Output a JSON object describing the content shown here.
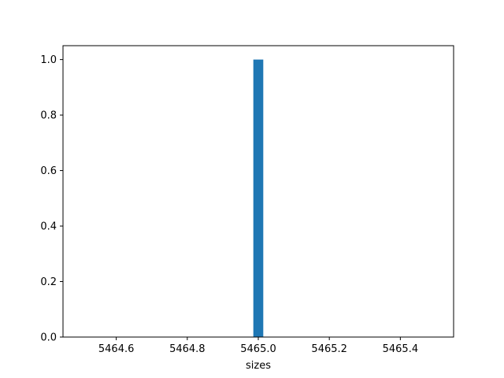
{
  "chart_data": {
    "type": "bar",
    "title": "",
    "xlabel": "sizes",
    "ylabel": "",
    "xlim": [
      5464.45,
      5465.55
    ],
    "ylim": [
      0,
      1.05
    ],
    "x_ticks": [
      5464.6,
      5464.8,
      5465.0,
      5465.2,
      5465.4
    ],
    "x_tick_labels": [
      "5464.6",
      "5464.8",
      "5465.0",
      "5465.2",
      "5465.4"
    ],
    "y_ticks": [
      0.0,
      0.2,
      0.4,
      0.6,
      0.8,
      1.0
    ],
    "y_tick_labels": [
      "0.0",
      "0.2",
      "0.4",
      "0.6",
      "0.8",
      "1.0"
    ],
    "bins": [
      {
        "x_start": 5464.986,
        "x_end": 5465.014,
        "value": 1
      }
    ],
    "bar_color": "#1f77b4",
    "grid": false
  }
}
